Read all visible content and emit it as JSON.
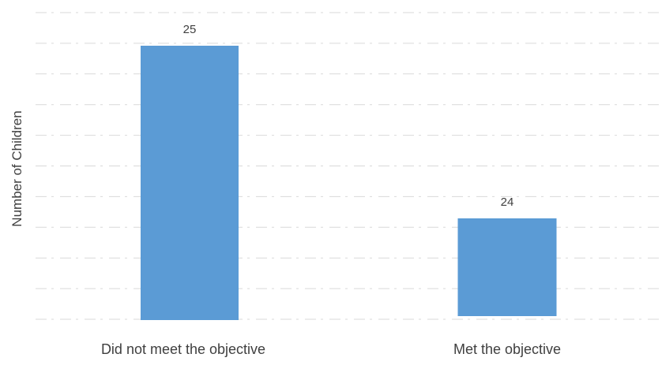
{
  "chart_data": {
    "type": "bar",
    "title": "",
    "xlabel": "",
    "ylabel": "Number of Children",
    "categories": [
      "Did not meet the objective",
      "Met the objective"
    ],
    "values": [
      25,
      24
    ],
    "data_labels": [
      "25",
      "24"
    ],
    "grid": true,
    "legend": "none",
    "bar_color": "#5b9bd5"
  }
}
